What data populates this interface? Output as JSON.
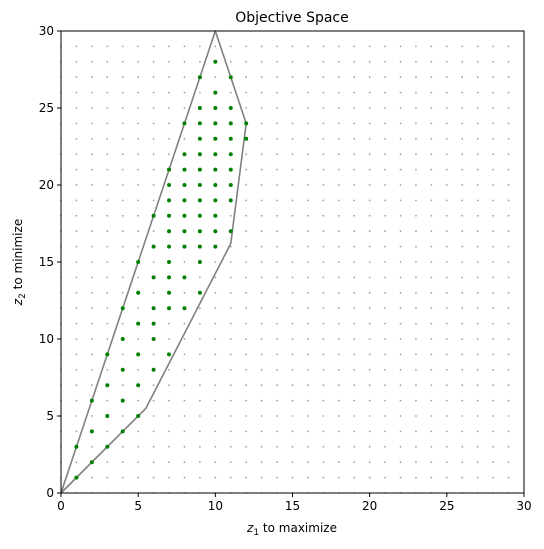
{
  "chart_data": {
    "type": "scatter",
    "title": "Objective Space",
    "xlabel": {
      "var": "z",
      "sub": "1",
      "rest": " to maximize"
    },
    "ylabel": {
      "var": "z",
      "sub": "2",
      "rest": " to minimize"
    },
    "xlim": [
      0,
      30
    ],
    "ylim": [
      0,
      30
    ],
    "xticks": [
      0,
      5,
      10,
      15,
      20,
      25,
      30
    ],
    "yticks": [
      0,
      5,
      10,
      15,
      20,
      25,
      30
    ],
    "grid": false,
    "background_lattice": {
      "x_range": [
        0,
        29
      ],
      "y_range": [
        0,
        29
      ],
      "step": 1,
      "color": "#a0a0a0"
    },
    "boundary": {
      "color": "#808080",
      "points": [
        [
          0,
          0
        ],
        [
          5.5,
          5.5
        ],
        [
          11,
          16.2
        ],
        [
          12,
          24
        ],
        [
          10,
          30
        ],
        [
          0,
          0
        ]
      ]
    },
    "feasible_points": {
      "color": "#008000",
      "rows": [
        {
          "y": 1,
          "x": [
            1
          ]
        },
        {
          "y": 2,
          "x": [
            2
          ]
        },
        {
          "y": 3,
          "x": [
            1,
            3
          ]
        },
        {
          "y": 4,
          "x": [
            2,
            4
          ]
        },
        {
          "y": 5,
          "x": [
            3,
            5
          ]
        },
        {
          "y": 6,
          "x": [
            2,
            4
          ]
        },
        {
          "y": 7,
          "x": [
            3,
            5
          ]
        },
        {
          "y": 8,
          "x": [
            4,
            6
          ]
        },
        {
          "y": 9,
          "x": [
            3,
            5,
            7
          ]
        },
        {
          "y": 10,
          "x": [
            4,
            6
          ]
        },
        {
          "y": 11,
          "x": [
            5,
            6
          ]
        },
        {
          "y": 12,
          "x": [
            4,
            6,
            7,
            8
          ]
        },
        {
          "y": 13,
          "x": [
            5,
            7,
            9
          ]
        },
        {
          "y": 14,
          "x": [
            6,
            7,
            8
          ]
        },
        {
          "y": 15,
          "x": [
            5,
            7,
            9
          ]
        },
        {
          "y": 16,
          "x": [
            6,
            7,
            8,
            9,
            10
          ]
        },
        {
          "y": 17,
          "x": [
            7,
            8,
            9,
            10,
            11
          ]
        },
        {
          "y": 18,
          "x": [
            6,
            7,
            8,
            9,
            10
          ]
        },
        {
          "y": 19,
          "x": [
            7,
            8,
            9,
            10,
            11
          ]
        },
        {
          "y": 20,
          "x": [
            7,
            8,
            9,
            10,
            11
          ]
        },
        {
          "y": 21,
          "x": [
            7,
            8,
            9,
            10,
            11
          ]
        },
        {
          "y": 22,
          "x": [
            8,
            9,
            10,
            11
          ]
        },
        {
          "y": 23,
          "x": [
            9,
            10,
            11,
            12
          ]
        },
        {
          "y": 24,
          "x": [
            8,
            9,
            10,
            11,
            12
          ]
        },
        {
          "y": 25,
          "x": [
            9,
            10,
            11
          ]
        },
        {
          "y": 26,
          "x": [
            10
          ]
        },
        {
          "y": 27,
          "x": [
            9,
            11
          ]
        },
        {
          "y": 28,
          "x": [
            10
          ]
        }
      ]
    }
  }
}
